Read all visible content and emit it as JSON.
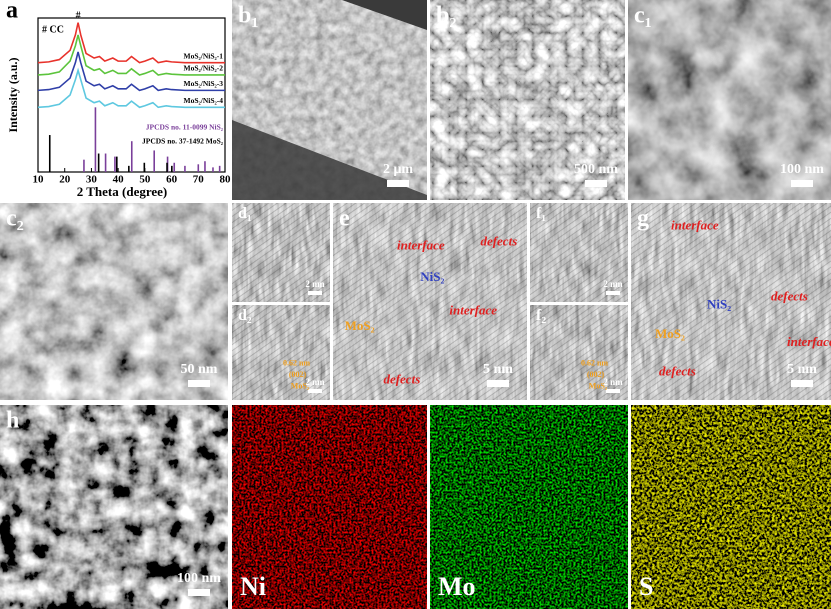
{
  "chart_data": {
    "type": "line",
    "label": "a",
    "x_label": "2 Theta (degree)",
    "y_label": "Intensity (a.u.)",
    "annotations": [
      "# CC",
      "#"
    ],
    "x": [
      10,
      14,
      18,
      22,
      24,
      25,
      26,
      28,
      31,
      33,
      35,
      38,
      40,
      43,
      45,
      48,
      50,
      53,
      55,
      58,
      60,
      65,
      70,
      75,
      80
    ],
    "series": [
      {
        "name": "MoS₂/NiS₂-1",
        "color": "#e8322b",
        "values": [
          71,
          71.5,
          73,
          79,
          89,
          97,
          89,
          77,
          74,
          75,
          72,
          74,
          72,
          72,
          75,
          71,
          72,
          74,
          71,
          72,
          71.5,
          71,
          71,
          71,
          71
        ]
      },
      {
        "name": "MoS₂/NiS₂-2",
        "color": "#5cc43c",
        "values": [
          63,
          63.5,
          65,
          72,
          82,
          89,
          82,
          69,
          66,
          67,
          64,
          66,
          64,
          64,
          67,
          63,
          64,
          66,
          63,
          64,
          63.5,
          63,
          63,
          63,
          63
        ]
      },
      {
        "name": "MoS₂/NiS₂-3",
        "color": "#2f3fa8",
        "values": [
          53,
          53.5,
          55,
          61,
          71,
          78,
          71,
          59,
          56,
          57,
          54,
          56,
          54,
          54,
          57,
          53,
          54,
          56,
          53,
          54,
          53.5,
          53,
          53,
          53,
          53
        ]
      },
      {
        "name": "MoS₂/NiS₂-4",
        "color": "#5ec8e0",
        "values": [
          42,
          42.5,
          44,
          50,
          60,
          66,
          60,
          48,
          45,
          46,
          43,
          45,
          43,
          43,
          46,
          42,
          43,
          45,
          42,
          43,
          42.5,
          42,
          42,
          42,
          42
        ]
      }
    ],
    "references": [
      {
        "name": "JPCDS no. 11-0099 NiS₂",
        "color": "#7a3f9a",
        "x": [
          27.2,
          31.5,
          35.3,
          38.8,
          45.1,
          53.5,
          58.5,
          61,
          65,
          70,
          72.5,
          75.5,
          78
        ],
        "values": [
          8,
          42,
          12,
          10,
          20,
          14,
          10,
          6,
          4,
          5,
          7,
          3,
          4
        ]
      },
      {
        "name": "JPCDS no. 37-1492 MoS₂",
        "color": "#000000",
        "x": [
          14.4,
          32.7,
          39.5,
          44,
          49.8,
          58.3,
          60.1
        ],
        "values": [
          24,
          12,
          10,
          4,
          6,
          6,
          4
        ]
      }
    ],
    "xlim": [
      10,
      80
    ],
    "xticks": [
      10,
      20,
      30,
      40,
      50,
      60,
      70,
      80
    ],
    "ylim": [
      0,
      100
    ]
  },
  "panels": {
    "b1": {
      "label": "b₁",
      "scale_bar": "2 μm"
    },
    "b2": {
      "label": "b₂",
      "scale_bar": "500 nm"
    },
    "c1": {
      "label": "c₁",
      "scale_bar": "100 nm"
    },
    "c2": {
      "label": "c₂",
      "scale_bar": "50 nm"
    },
    "d1": {
      "label": "d₁",
      "scale_bar": "2 nm"
    },
    "d2": {
      "label": "d₂",
      "scale_bar": "2 nm",
      "annotations": [
        {
          "text": "0.62 nm",
          "color": "#f0a020"
        },
        {
          "text": "(002)",
          "color": "#f0a020"
        },
        {
          "text": "MoS₂",
          "color": "#f0a020"
        }
      ]
    },
    "e": {
      "label": "e",
      "scale_bar": "5 nm",
      "annotations": [
        {
          "text": "interface",
          "color": "#e02020"
        },
        {
          "text": "defects",
          "color": "#e02020"
        },
        {
          "text": "NiS₂",
          "color": "#3040c0"
        },
        {
          "text": "MoS₂",
          "color": "#f0a020"
        },
        {
          "text": "interface",
          "color": "#e02020"
        },
        {
          "text": "defects",
          "color": "#e02020"
        }
      ]
    },
    "f1": {
      "label": "f₁",
      "scale_bar": "2 nm"
    },
    "f2": {
      "label": "f₂",
      "scale_bar": "2 nm",
      "annotations": [
        {
          "text": "0.62 nm",
          "color": "#f0a020"
        },
        {
          "text": "(002)",
          "color": "#f0a020"
        },
        {
          "text": "MoS₂",
          "color": "#f0a020"
        }
      ]
    },
    "g": {
      "label": "g",
      "scale_bar": "5 nm",
      "annotations": [
        {
          "text": "interface",
          "color": "#e02020"
        },
        {
          "text": "NiS₂",
          "color": "#3040c0"
        },
        {
          "text": "defects",
          "color": "#e02020"
        },
        {
          "text": "MoS₂",
          "color": "#f0a020"
        },
        {
          "text": "interface",
          "color": "#e02020"
        },
        {
          "text": "defects",
          "color": "#e02020"
        }
      ]
    },
    "h": {
      "label": "h",
      "scale_bar": "100 nm"
    },
    "ni": {
      "label": "Ni"
    },
    "mo": {
      "label": "Mo"
    },
    "s": {
      "label": "S"
    }
  }
}
